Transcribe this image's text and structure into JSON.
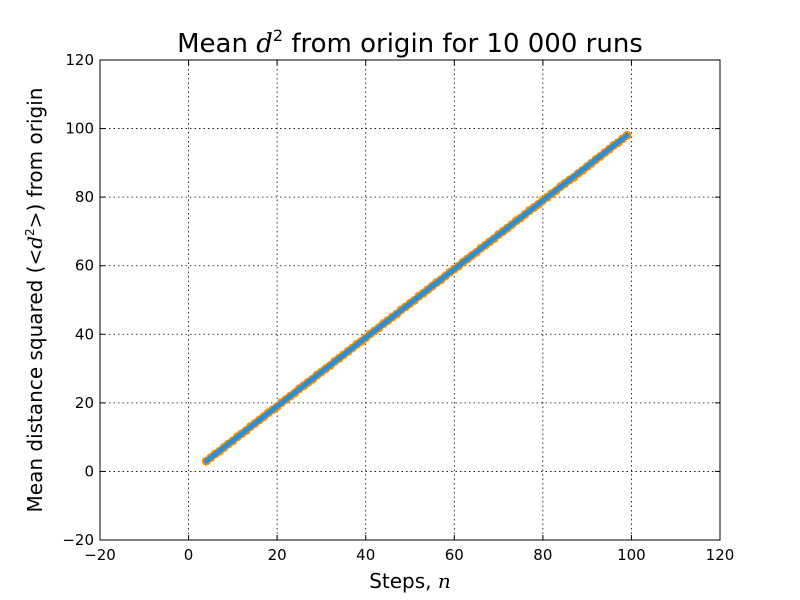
{
  "chart_data": {
    "type": "line",
    "title_prefix": "Mean ",
    "title_math": "d",
    "title_sup": "2",
    "title_suffix": " from origin for 10 000 runs",
    "xlabel_text": "Steps, ",
    "xlabel_math": "n",
    "ylabel_prefix": "Mean distance squared (",
    "ylabel_math": "<d",
    "ylabel_sup": "2",
    "ylabel_math_close": ">",
    "ylabel_suffix": ") from origin",
    "xlim": [
      -20,
      120
    ],
    "ylim": [
      -20,
      120
    ],
    "xticks": [
      -20,
      0,
      20,
      40,
      60,
      80,
      100,
      120
    ],
    "yticks": [
      -20,
      0,
      20,
      40,
      60,
      80,
      100,
      120
    ],
    "xtick_labels": [
      "−20",
      "0",
      "20",
      "40",
      "60",
      "80",
      "100",
      "120"
    ],
    "ytick_labels": [
      "−20",
      "0",
      "20",
      "40",
      "60",
      "80",
      "100",
      "120"
    ],
    "grid": true,
    "series": [
      {
        "color": "#ff8c00",
        "marker": "circle",
        "x_start": 4,
        "x_end": 99,
        "values": [
          3.0,
          4.0,
          5.1,
          5.9,
          7.0,
          8.0,
          8.9,
          10.1,
          11.0,
          11.9,
          13.1,
          14.0,
          15.0,
          16.0,
          17.1,
          18.0,
          18.9,
          20.1,
          21.0,
          22.0,
          22.9,
          24.1,
          25.0,
          26.0,
          26.9,
          28.1,
          29.0,
          30.0,
          30.9,
          32.1,
          33.0,
          34.0,
          35.0,
          36.0,
          37.1,
          37.9,
          39.0,
          40.1,
          41.0,
          41.9,
          43.1,
          44.0,
          45.0,
          45.9,
          47.1,
          48.0,
          49.0,
          49.9,
          51.1,
          52.0,
          53.0,
          54.0,
          55.1,
          55.9,
          57.0,
          58.1,
          59.0,
          59.9,
          61.1,
          62.0,
          63.0,
          63.9,
          65.1,
          66.0,
          67.0,
          67.9,
          69.1,
          70.0,
          71.0,
          72.0,
          73.1,
          73.9,
          75.0,
          76.1,
          77.0,
          77.9,
          79.1,
          80.0,
          81.0,
          81.9,
          83.1,
          84.0,
          85.0,
          85.8,
          86.9,
          87.8,
          88.9,
          89.9,
          91.0,
          91.9,
          93.0,
          94.0,
          95.1,
          95.9,
          97.0,
          98.0
        ]
      },
      {
        "color": "#2b8fd6",
        "marker": "line",
        "x_start": 4,
        "x_end": 99,
        "values": [
          3.0,
          4.0,
          5.0,
          6.0,
          7.0,
          8.0,
          9.0,
          10.0,
          11.0,
          12.0,
          13.0,
          14.0,
          15.0,
          16.0,
          17.0,
          18.0,
          19.0,
          20.0,
          21.0,
          22.0,
          23.0,
          24.0,
          25.0,
          26.0,
          27.0,
          28.0,
          29.0,
          30.0,
          31.0,
          32.0,
          33.0,
          34.0,
          35.0,
          36.0,
          37.0,
          38.0,
          39.0,
          40.0,
          41.0,
          42.0,
          43.0,
          44.0,
          45.0,
          46.0,
          47.0,
          48.0,
          49.0,
          50.0,
          51.0,
          52.0,
          53.0,
          54.0,
          55.0,
          56.0,
          57.0,
          58.0,
          59.0,
          60.0,
          61.0,
          62.0,
          63.0,
          64.0,
          65.0,
          66.0,
          67.0,
          68.0,
          69.0,
          70.0,
          71.0,
          72.0,
          73.0,
          74.0,
          75.0,
          76.0,
          77.0,
          78.0,
          79.0,
          80.0,
          81.0,
          82.0,
          83.0,
          84.0,
          85.0,
          86.0,
          87.0,
          88.0,
          89.0,
          90.0,
          91.0,
          92.0,
          93.0,
          94.0,
          95.0,
          96.0,
          97.0,
          98.0
        ]
      }
    ]
  }
}
